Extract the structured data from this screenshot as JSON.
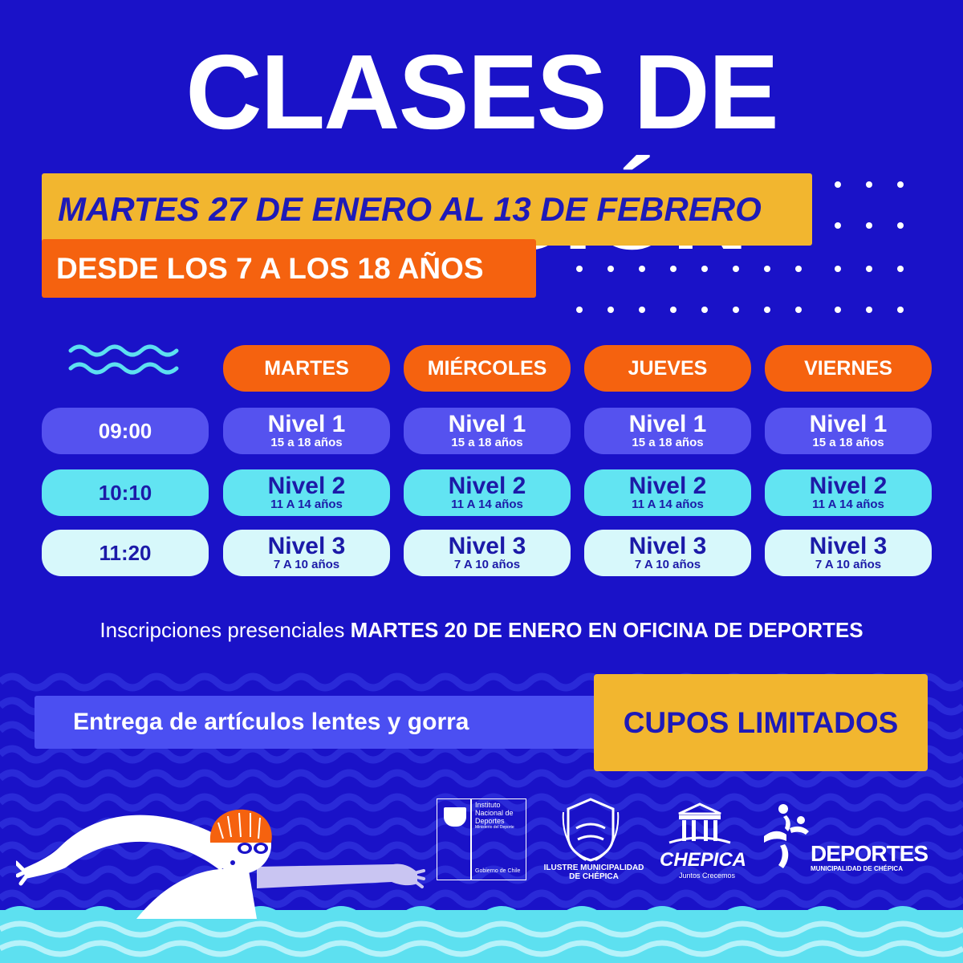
{
  "title": "CLASES DE NATACIÓN",
  "date_banner": "MARTES 27 DE ENERO AL 13 DE FEBRERO",
  "age_banner": "DESDE LOS 7 A LOS 18 AÑOS",
  "schedule": {
    "days": [
      "MARTES",
      "MIÉRCOLES",
      "JUEVES",
      "VIERNES"
    ],
    "rows": [
      {
        "time": "09:00",
        "level": "Nivel 1",
        "ages": "15 a 18 años"
      },
      {
        "time": "10:10",
        "level": "Nivel 2",
        "ages": "11 A 14 años"
      },
      {
        "time": "11:20",
        "level": "Nivel 3",
        "ages": "7 A 10 años"
      }
    ]
  },
  "registration": {
    "prefix": "Inscripciones presenciales ",
    "bold": "MARTES 20 DE ENERO EN OFICINA DE DEPORTES"
  },
  "delivery": "Entrega de artículos lentes y gorra",
  "limited": "CUPOS LIMITADOS",
  "logos": {
    "ind_line1": "Instituto",
    "ind_line2": "Nacional de",
    "ind_line3": "Deportes",
    "ind_line4": "Ministerio del Deporte",
    "ind_bottom": "Gobierno de Chile",
    "muni_line1": "ILUSTRE MUNICIPALIDAD",
    "muni_line2": "DE CHÉPICA",
    "chepica_name": "CHEPICA",
    "chepica_slogan": "Juntos Crecemos",
    "deportes_name": "DEPORTES",
    "deportes_sub": "MUNICIPALIDAD DE CHÉPICA"
  },
  "colors": {
    "background": "#1a12c8",
    "yellow": "#f2b62f",
    "orange": "#f5620f",
    "cyan": "#62e4f2"
  }
}
